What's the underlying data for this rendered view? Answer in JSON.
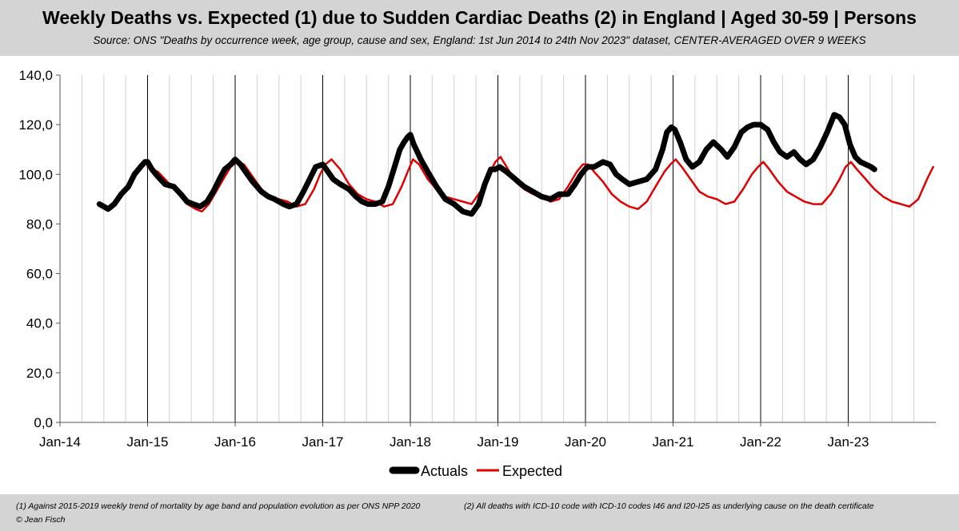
{
  "header": {
    "title": "Weekly Deaths vs. Expected (1) due to Sudden Cardiac Deaths (2) in England | Aged 30-59 | Persons",
    "subtitle": "Source: ONS \"Deaths by occurrence week, age group, cause and sex, England: 1st Jun 2014 to 24th Nov 2023\" dataset, CENTER-AVERAGED OVER 9 WEEKS"
  },
  "footer": {
    "note1": "(1) Against 2015-2019 weekly trend of mortality by age band and population evolution as per ONS NPP 2020",
    "note2": "(2) All deaths with ICD-10 code with ICD-10 codes I46 and I20-I25 as underlying cause on the death certificate",
    "credit": "© Jean Fisch"
  },
  "colors": {
    "actuals": "#000000",
    "expected": "#e00000",
    "header_bg": "#d4d4d4",
    "grid": "#d0d0d0"
  },
  "chart_data": {
    "type": "line",
    "title": "Weekly Deaths vs. Expected (1) due to Sudden Cardiac Deaths (2) in England | Aged 30-59 | Persons",
    "xlabel": "",
    "ylabel": "",
    "ylim": [
      0,
      140
    ],
    "yticks": [
      "0,0",
      "20,0",
      "40,0",
      "60,0",
      "80,0",
      "100,0",
      "120,0",
      "140,0"
    ],
    "xticks": [
      "Jan-14",
      "Jan-15",
      "Jan-16",
      "Jan-17",
      "Jan-18",
      "Jan-19",
      "Jan-20",
      "Jan-21",
      "Jan-22",
      "Jan-23"
    ],
    "x_unit": "years since Jan-2014",
    "legend_position": "bottom",
    "series": [
      {
        "name": "Actuals",
        "color": "#000000",
        "x": [
          0.45,
          0.5,
          0.55,
          0.62,
          0.7,
          0.78,
          0.85,
          0.92,
          0.97,
          1.0,
          1.05,
          1.12,
          1.2,
          1.3,
          1.38,
          1.45,
          1.52,
          1.6,
          1.68,
          1.75,
          1.82,
          1.88,
          1.95,
          2.0,
          2.06,
          2.12,
          2.2,
          2.3,
          2.38,
          2.45,
          2.55,
          2.62,
          2.7,
          2.78,
          2.85,
          2.92,
          3.0,
          3.06,
          3.12,
          3.2,
          3.3,
          3.38,
          3.45,
          3.52,
          3.6,
          3.68,
          3.75,
          3.82,
          3.88,
          3.93,
          3.97,
          4.0,
          4.04,
          4.08,
          4.12,
          4.2,
          4.3,
          4.4,
          4.5,
          4.6,
          4.7,
          4.78,
          4.85,
          4.92,
          4.97,
          5.02,
          5.1,
          5.2,
          5.3,
          5.4,
          5.5,
          5.6,
          5.7,
          5.8,
          5.88,
          5.95,
          6.02,
          6.1,
          6.2,
          6.28,
          6.35,
          6.42,
          6.5,
          6.6,
          6.7,
          6.8,
          6.88,
          6.93,
          6.98,
          7.02,
          7.08,
          7.15,
          7.22,
          7.3,
          7.38,
          7.46,
          7.55,
          7.62,
          7.7,
          7.78,
          7.85,
          7.92,
          8.0,
          8.08,
          8.15,
          8.22,
          8.3,
          8.38,
          8.45,
          8.52,
          8.6,
          8.68,
          8.76,
          8.84,
          8.9,
          8.96,
          9.02,
          9.08,
          9.14,
          9.2,
          9.26,
          9.3
        ],
        "values": [
          88,
          87,
          86,
          88,
          92,
          95,
          100,
          103,
          105,
          105,
          102,
          99,
          96,
          95,
          92,
          89,
          88,
          87,
          89,
          93,
          98,
          102,
          104,
          106,
          104,
          101,
          97,
          93,
          91,
          90,
          88,
          87,
          88,
          93,
          98,
          103,
          104,
          101,
          98,
          96,
          94,
          91,
          89,
          88,
          88,
          89,
          95,
          103,
          110,
          113,
          115,
          116,
          112,
          109,
          106,
          101,
          95,
          90,
          88,
          85,
          84,
          88,
          96,
          102,
          102,
          103,
          101,
          98,
          95,
          93,
          91,
          90,
          92,
          92,
          96,
          100,
          103,
          103,
          105,
          104,
          100,
          98,
          96,
          97,
          98,
          102,
          110,
          117,
          119,
          118,
          113,
          106,
          103,
          105,
          110,
          113,
          110,
          107,
          111,
          117,
          119,
          120,
          120,
          118,
          113,
          109,
          107,
          109,
          106,
          104,
          106,
          111,
          117,
          124,
          123,
          120,
          112,
          107,
          105,
          104,
          103,
          102
        ]
      },
      {
        "name": "Expected",
        "color": "#e00000",
        "x": [
          1.0,
          1.05,
          1.12,
          1.2,
          1.3,
          1.38,
          1.45,
          1.55,
          1.62,
          1.7,
          1.8,
          1.88,
          1.95,
          2.02,
          2.1,
          2.2,
          2.3,
          2.4,
          2.5,
          2.6,
          2.7,
          2.8,
          2.9,
          2.97,
          3.03,
          3.1,
          3.2,
          3.3,
          3.4,
          3.5,
          3.6,
          3.7,
          3.8,
          3.9,
          3.97,
          4.03,
          4.1,
          4.2,
          4.3,
          4.4,
          4.5,
          4.6,
          4.7,
          4.8,
          4.9,
          4.97,
          5.03,
          5.1,
          5.2,
          5.3,
          5.4,
          5.5,
          5.6,
          5.7,
          5.8,
          5.9,
          5.97,
          6.03,
          6.1,
          6.2,
          6.3,
          6.4,
          6.5,
          6.6,
          6.7,
          6.8,
          6.9,
          6.97,
          7.03,
          7.1,
          7.2,
          7.3,
          7.4,
          7.5,
          7.6,
          7.7,
          7.8,
          7.9,
          7.97,
          8.03,
          8.1,
          8.2,
          8.3,
          8.4,
          8.5,
          8.6,
          8.7,
          8.8,
          8.9,
          8.97,
          9.03,
          9.1,
          9.2,
          9.3,
          9.4,
          9.5,
          9.6,
          9.7,
          9.8,
          9.9,
          9.97
        ],
        "values": [
          103,
          102,
          101,
          98,
          94,
          91,
          88,
          86,
          85,
          88,
          94,
          99,
          103,
          105,
          104,
          99,
          94,
          91,
          90,
          89,
          87,
          88,
          94,
          100,
          104,
          106,
          102,
          96,
          92,
          90,
          89,
          87,
          88,
          95,
          101,
          106,
          104,
          98,
          94,
          91,
          90,
          89,
          88,
          93,
          100,
          105,
          107,
          103,
          97,
          94,
          92,
          91,
          89,
          90,
          95,
          101,
          104,
          104,
          101,
          97,
          92,
          89,
          87,
          86,
          89,
          95,
          101,
          104,
          106,
          103,
          98,
          93,
          91,
          90,
          88,
          89,
          94,
          100,
          103,
          105,
          102,
          97,
          93,
          91,
          89,
          88,
          88,
          92,
          98,
          103,
          105,
          102,
          98,
          94,
          91,
          89,
          88,
          87,
          90,
          98,
          103
        ]
      }
    ]
  }
}
